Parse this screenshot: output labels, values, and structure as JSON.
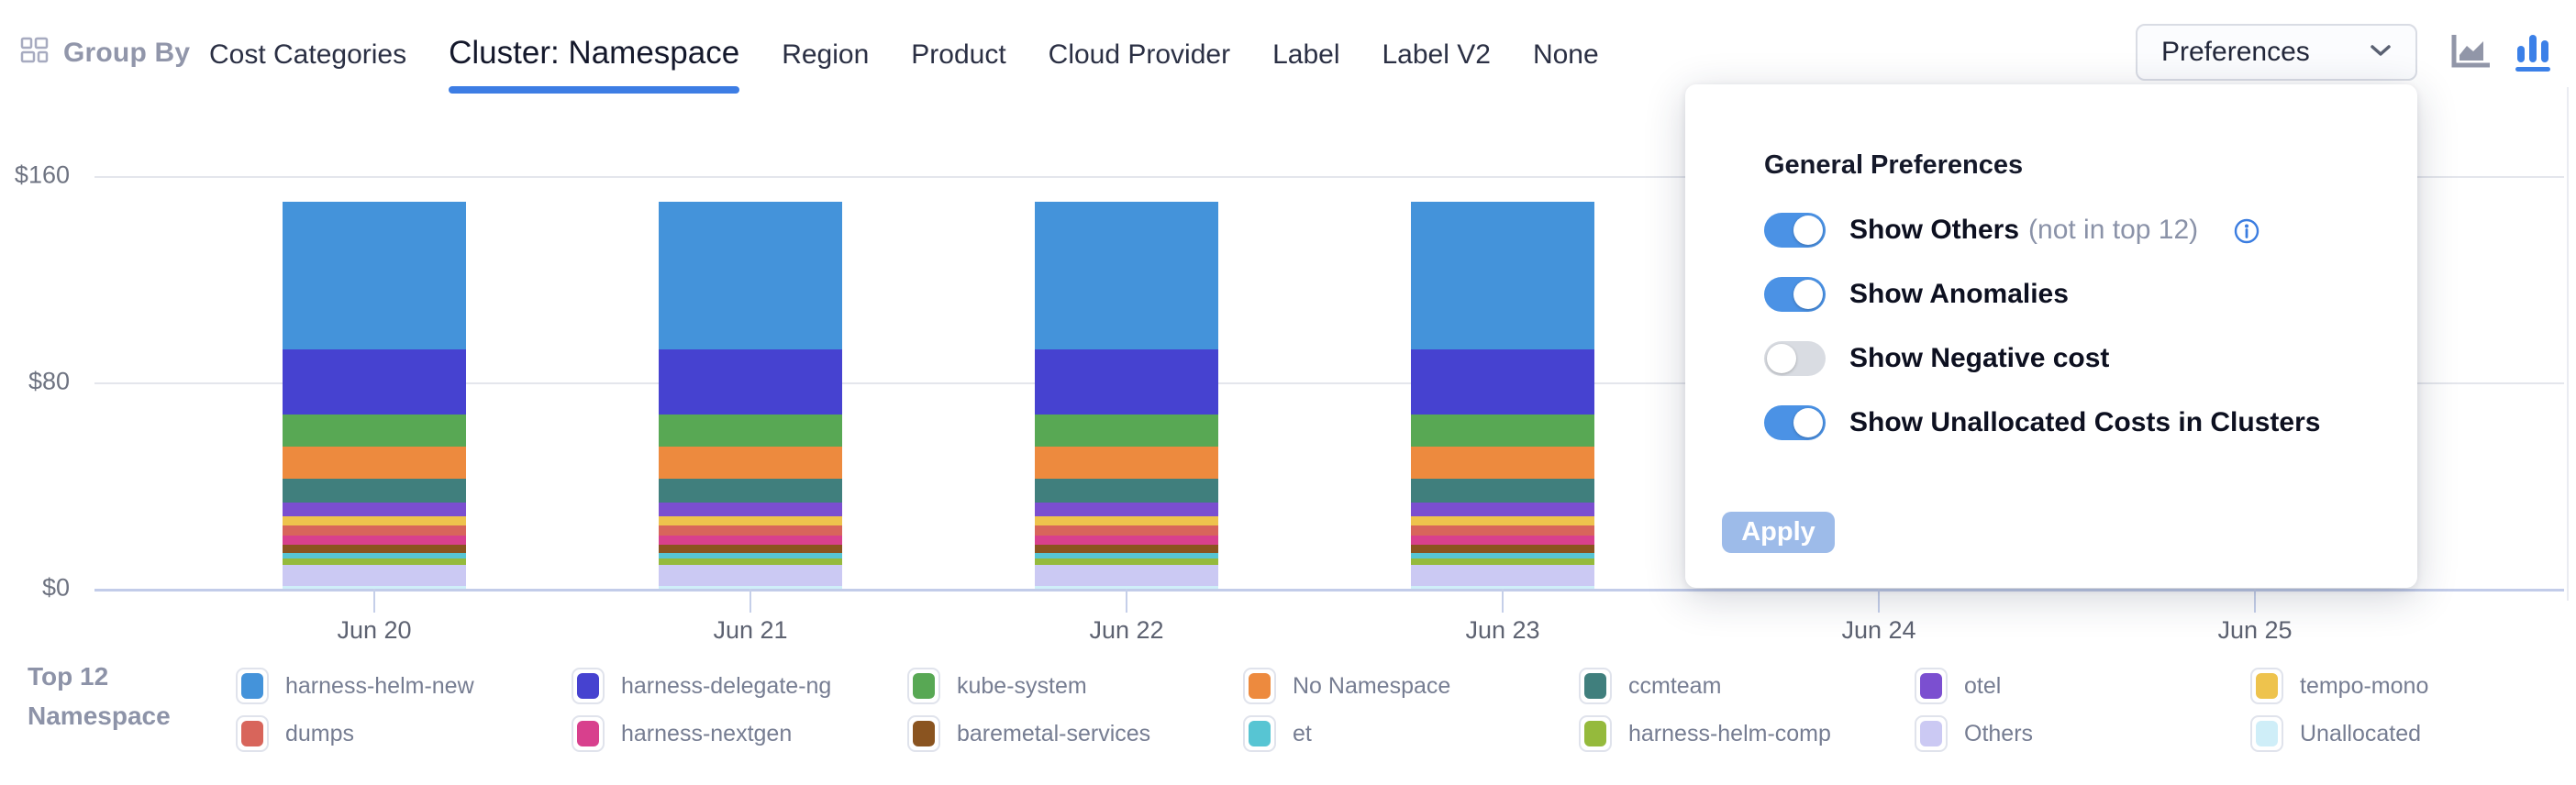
{
  "header": {
    "group_by_label": "Group By",
    "tabs": [
      {
        "label": "Cost Categories",
        "active": false
      },
      {
        "label": "Cluster: Namespace",
        "active": true
      },
      {
        "label": "Region",
        "active": false
      },
      {
        "label": "Product",
        "active": false
      },
      {
        "label": "Cloud Provider",
        "active": false
      },
      {
        "label": "Label",
        "active": false
      },
      {
        "label": "Label V2",
        "active": false
      },
      {
        "label": "None",
        "active": false
      }
    ],
    "preferences_button_label": "Preferences",
    "chart_type_icons": [
      "area-chart",
      "bar-chart"
    ],
    "active_chart_type": "bar-chart"
  },
  "colors": {
    "accent_blue": "#3d7de4",
    "toggle_on": "#4b92e5",
    "toggle_off": "#d9dce2",
    "apply_disabled": "#9dbbe9",
    "gridline": "#e4e6ec",
    "axis_line": "#c2cce9"
  },
  "chart_data": {
    "type": "bar",
    "stacked": true,
    "title": "",
    "xlabel": "",
    "ylabel": "",
    "ylim": [
      0,
      160
    ],
    "grid": "horizontal",
    "y_ticks": [
      {
        "label": "$160",
        "value": 160
      },
      {
        "label": "$80",
        "value": 80
      },
      {
        "label": "$0",
        "value": 0
      }
    ],
    "categories": [
      "Jun 20",
      "Jun 21",
      "Jun 22",
      "Jun 23",
      "Jun 24",
      "Jun 25"
    ],
    "note": "Bars for Jun 24 and Jun 25 area are hidden behind the open Preferences popover; stack order top-to-bottom follows series order; values in USD",
    "series": [
      {
        "name": "harness-helm-new",
        "color": "#4493da",
        "values": [
          57.1,
          57.1,
          57.1,
          57.1,
          null,
          null
        ]
      },
      {
        "name": "harness-delegate-ng",
        "color": "#4642d0",
        "values": [
          25.3,
          25.3,
          25.3,
          25.3,
          null,
          null
        ]
      },
      {
        "name": "kube-system",
        "color": "#58a854",
        "values": [
          12.5,
          12.5,
          12.5,
          12.5,
          null,
          null
        ]
      },
      {
        "name": "No Namespace",
        "color": "#ed8a3e",
        "values": [
          12.5,
          12.5,
          12.5,
          12.5,
          null,
          null
        ]
      },
      {
        "name": "ccmteam",
        "color": "#407f7d",
        "values": [
          8.9,
          8.9,
          8.9,
          8.9,
          null,
          null
        ]
      },
      {
        "name": "otel",
        "color": "#7b4fd0",
        "values": [
          5.4,
          5.4,
          5.4,
          5.4,
          null,
          null
        ]
      },
      {
        "name": "tempo-mono",
        "color": "#eec34d",
        "values": [
          3.6,
          3.6,
          3.6,
          3.6,
          null,
          null
        ]
      },
      {
        "name": "dumps",
        "color": "#d8655b",
        "values": [
          3.9,
          3.9,
          3.9,
          3.9,
          null,
          null
        ]
      },
      {
        "name": "harness-nextgen",
        "color": "#d8408d",
        "values": [
          3.6,
          3.6,
          3.6,
          3.6,
          null,
          null
        ]
      },
      {
        "name": "baremetal-services",
        "color": "#8a5420",
        "values": [
          3.2,
          3.2,
          3.2,
          3.2,
          null,
          null
        ]
      },
      {
        "name": "et",
        "color": "#57c5d3",
        "values": [
          2.1,
          2.1,
          2.1,
          2.1,
          null,
          null
        ]
      },
      {
        "name": "harness-helm-comp",
        "color": "#95ba3c",
        "values": [
          2.5,
          2.5,
          2.5,
          2.5,
          null,
          null
        ]
      },
      {
        "name": "Others",
        "color": "#cbc9f3",
        "values": [
          8.2,
          8.2,
          8.2,
          8.2,
          null,
          null
        ]
      },
      {
        "name": "Unallocated",
        "color": "#cfeef8",
        "values": [
          1.1,
          1.1,
          1.1,
          1.1,
          null,
          null
        ]
      }
    ],
    "legend_position": "bottom"
  },
  "legend": {
    "title": "Top 12 Namespace"
  },
  "preferences_panel": {
    "title": "General Preferences",
    "toggles": [
      {
        "label": "Show Others",
        "suffix": "(not in top 12)",
        "info": true,
        "on": true
      },
      {
        "label": "Show Anomalies",
        "suffix": "",
        "info": false,
        "on": true
      },
      {
        "label": "Show Negative cost",
        "suffix": "",
        "info": false,
        "on": false
      },
      {
        "label": "Show Unallocated Costs in Clusters",
        "suffix": "",
        "info": false,
        "on": true
      }
    ],
    "apply_label": "Apply"
  }
}
